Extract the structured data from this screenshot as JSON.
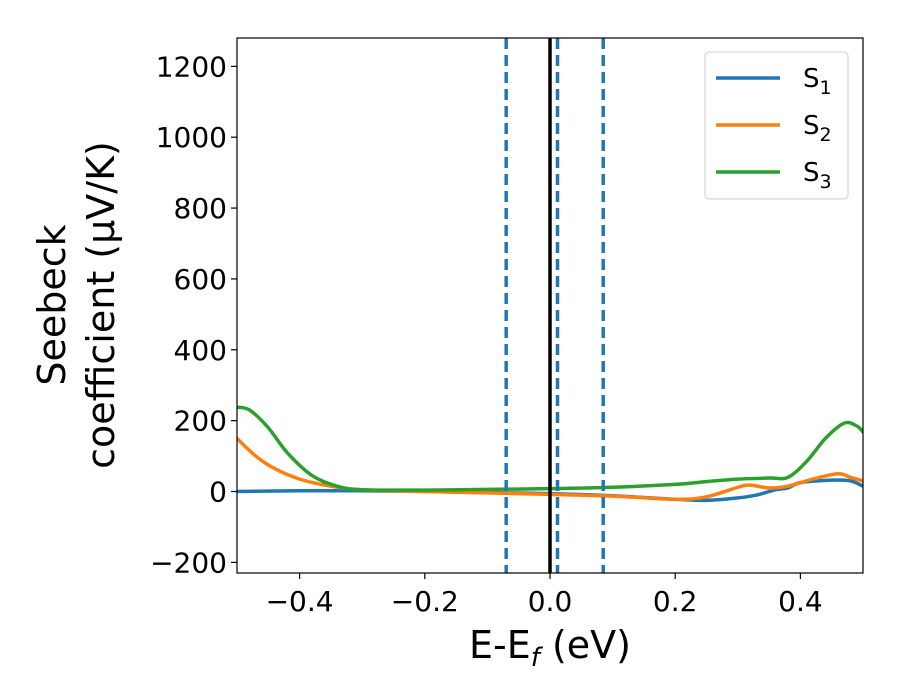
{
  "chart_data": {
    "type": "line",
    "xlabel": "E-E",
    "xlabel_sub": "f",
    "xlabel_unit": " (eV)",
    "ylabel_line1": "Seebeck",
    "ylabel_line2": "coefficient  (μV/K)",
    "xlim": [
      -0.5,
      0.5
    ],
    "ylim": [
      -230,
      1280
    ],
    "xticks": [
      -0.4,
      -0.2,
      0.0,
      0.2,
      0.4
    ],
    "xtick_labels": [
      "−0.4",
      "−0.2",
      "0.0",
      "0.2",
      "0.4"
    ],
    "yticks": [
      -200,
      0,
      200,
      400,
      600,
      800,
      1000,
      1200
    ],
    "ytick_labels": [
      "−200",
      "0",
      "200",
      "400",
      "600",
      "800",
      "1000",
      "1200"
    ],
    "legend_position": "top-right",
    "fermi_line": {
      "x": 0.0,
      "color": "#000000",
      "style": "solid"
    },
    "dashed_lines": [
      {
        "x": -0.07,
        "color": "#1f77b4"
      },
      {
        "x": 0.012,
        "color": "#1f77b4"
      },
      {
        "x": 0.085,
        "color": "#1f77b4"
      }
    ],
    "series": [
      {
        "name": "S",
        "sub": "1",
        "color": "#1f77b4",
        "x": [
          -0.5,
          -0.4,
          -0.3,
          -0.2,
          -0.1,
          0.0,
          0.1,
          0.2,
          0.25,
          0.3,
          0.33,
          0.36,
          0.38,
          0.4,
          0.45,
          0.48,
          0.5
        ],
        "y": [
          0,
          2,
          2,
          0,
          -3,
          -6,
          -12,
          -22,
          -25,
          -18,
          -10,
          5,
          10,
          25,
          32,
          30,
          15
        ]
      },
      {
        "name": "S",
        "sub": "2",
        "color": "#ff7f0e",
        "x": [
          -0.5,
          -0.47,
          -0.44,
          -0.4,
          -0.35,
          -0.3,
          -0.2,
          -0.1,
          0.0,
          0.1,
          0.2,
          0.25,
          0.3,
          0.32,
          0.35,
          0.38,
          0.42,
          0.46,
          0.48,
          0.5
        ],
        "y": [
          150,
          100,
          65,
          35,
          15,
          5,
          0,
          -4,
          -8,
          -13,
          -22,
          -15,
          12,
          18,
          10,
          15,
          35,
          50,
          40,
          30
        ]
      },
      {
        "name": "S",
        "sub": "3",
        "color": "#2ca02c",
        "x": [
          -0.5,
          -0.48,
          -0.45,
          -0.42,
          -0.38,
          -0.34,
          -0.3,
          -0.2,
          -0.1,
          0.0,
          0.1,
          0.2,
          0.25,
          0.3,
          0.35,
          0.38,
          0.41,
          0.44,
          0.47,
          0.49,
          0.5
        ],
        "y": [
          238,
          230,
          180,
          110,
          45,
          15,
          5,
          4,
          6,
          8,
          12,
          20,
          28,
          35,
          38,
          40,
          85,
          150,
          193,
          185,
          168
        ]
      }
    ]
  }
}
